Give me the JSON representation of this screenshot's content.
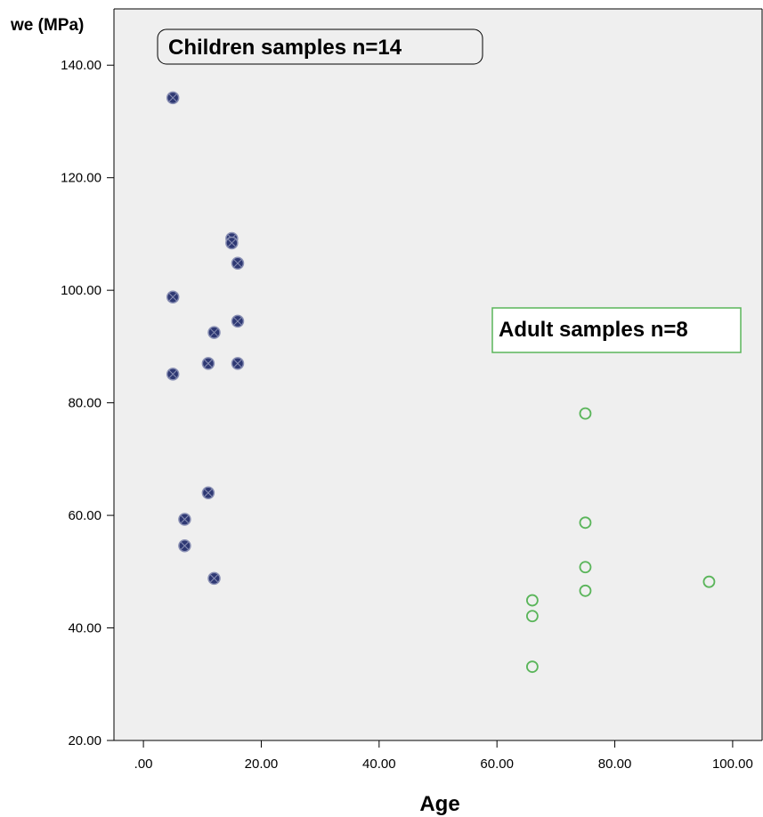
{
  "chart_data": {
    "type": "scatter",
    "title": "",
    "xlabel": "Age",
    "ylabel": "we (MPa)",
    "xlim": [
      -5,
      105
    ],
    "ylim": [
      20,
      150
    ],
    "x_ticks": [
      ".00",
      "20.00",
      "40.00",
      "60.00",
      "80.00",
      "100.00"
    ],
    "x_tick_values": [
      0,
      20,
      40,
      60,
      80,
      100
    ],
    "y_ticks": [
      "20.00",
      "40.00",
      "60.00",
      "80.00",
      "100.00",
      "120.00",
      "140.00"
    ],
    "y_tick_values": [
      20,
      40,
      60,
      80,
      100,
      120,
      140
    ],
    "grid": false,
    "background": "#efefef",
    "series": [
      {
        "name": "Children samples n=14",
        "color": "#2e3873",
        "marker": "filled-circle",
        "points": [
          {
            "x": 5,
            "y": 134.2
          },
          {
            "x": 15,
            "y": 109.2
          },
          {
            "x": 15,
            "y": 108.4
          },
          {
            "x": 16,
            "y": 104.8
          },
          {
            "x": 5,
            "y": 98.8
          },
          {
            "x": 16,
            "y": 94.5
          },
          {
            "x": 12,
            "y": 92.5
          },
          {
            "x": 11,
            "y": 87
          },
          {
            "x": 16,
            "y": 87
          },
          {
            "x": 5,
            "y": 85.1
          },
          {
            "x": 11,
            "y": 64
          },
          {
            "x": 7,
            "y": 59.3
          },
          {
            "x": 7,
            "y": 54.6
          },
          {
            "x": 12,
            "y": 48.8
          }
        ]
      },
      {
        "name": "Adult samples n=8",
        "color": "#5ab55a",
        "marker": "hollow-circle",
        "points": [
          {
            "x": 75,
            "y": 78.1
          },
          {
            "x": 75,
            "y": 58.7
          },
          {
            "x": 75,
            "y": 50.8
          },
          {
            "x": 96,
            "y": 48.2
          },
          {
            "x": 75,
            "y": 46.6
          },
          {
            "x": 66,
            "y": 44.9
          },
          {
            "x": 66,
            "y": 42.1
          },
          {
            "x": 66,
            "y": 33.1
          }
        ]
      }
    ],
    "annotations": [
      {
        "text": "Children samples n=14",
        "style": "rounded-box",
        "series": 0
      },
      {
        "text": "Adult samples n=8",
        "style": "green-box",
        "series": 1
      }
    ]
  }
}
